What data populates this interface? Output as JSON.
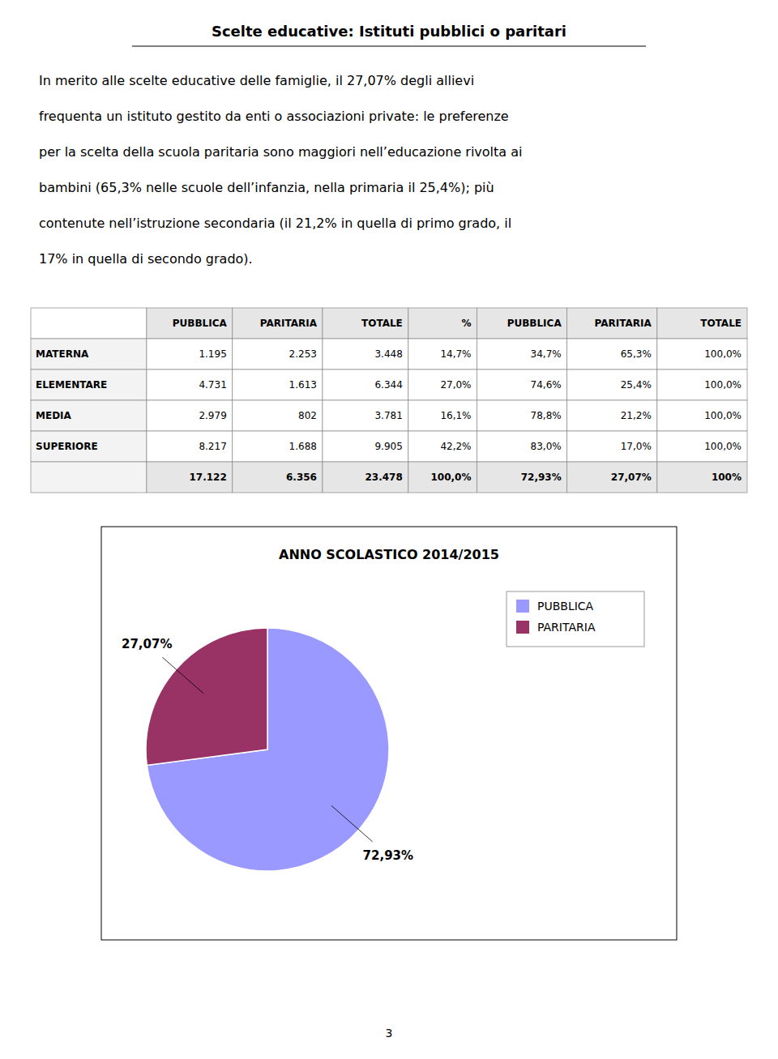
{
  "title": "Scelte educative: Istituti pubblici o paritari",
  "body_lines": [
    "In merito alle scelte educative delle famiglie, il 27,07% degli allievi",
    "frequenta un istituto gestito da enti o associazioni private: le preferenze",
    "per la scelta della scuola paritaria sono maggiori nell’educazione rivolta ai",
    "bambini (65,3% nelle scuole dell’infanzia, nella primaria il 25,4%); più",
    "contenute nell’istruzione secondaria (il 21,2% in quella di primo grado, il",
    "17% in quella di secondo grado)."
  ],
  "table": {
    "headers": [
      null,
      "PUBBLICA",
      "PARITARIA",
      "TOTALE",
      "%",
      "PUBBLICA",
      "PARITARIA",
      "TOTALE"
    ],
    "rows": [
      [
        "MATERNA",
        "1.195",
        "2.253",
        "3.448",
        "14,7%",
        "34,7%",
        "65,3%",
        "100,0%"
      ],
      [
        "ELEMENTARE",
        "4.731",
        "1.613",
        "6.344",
        "27,0%",
        "74,6%",
        "25,4%",
        "100,0%"
      ],
      [
        "MEDIA",
        "2.979",
        "802",
        "3.781",
        "16,1%",
        "78,8%",
        "21,2%",
        "100,0%"
      ],
      [
        "SUPERIORE",
        "8.217",
        "1.688",
        "9.905",
        "42,2%",
        "83,0%",
        "17,0%",
        "100,0%"
      ],
      [
        null,
        "17.122",
        "6.356",
        "23.478",
        "100,0%",
        "72,93%",
        "27,07%",
        "100%"
      ]
    ]
  },
  "chart_data": {
    "type": "pie",
    "title": "ANNO SCOLASTICO 2014/2015",
    "categories": [
      "PUBBLICA",
      "PARITARIA"
    ],
    "values": [
      72.93,
      27.07
    ],
    "value_labels": [
      "72,93%",
      "27,07%"
    ],
    "colors": [
      "#9999ff",
      "#993366"
    ],
    "data_labels": true,
    "legend": "upper right"
  },
  "page_number": "3"
}
